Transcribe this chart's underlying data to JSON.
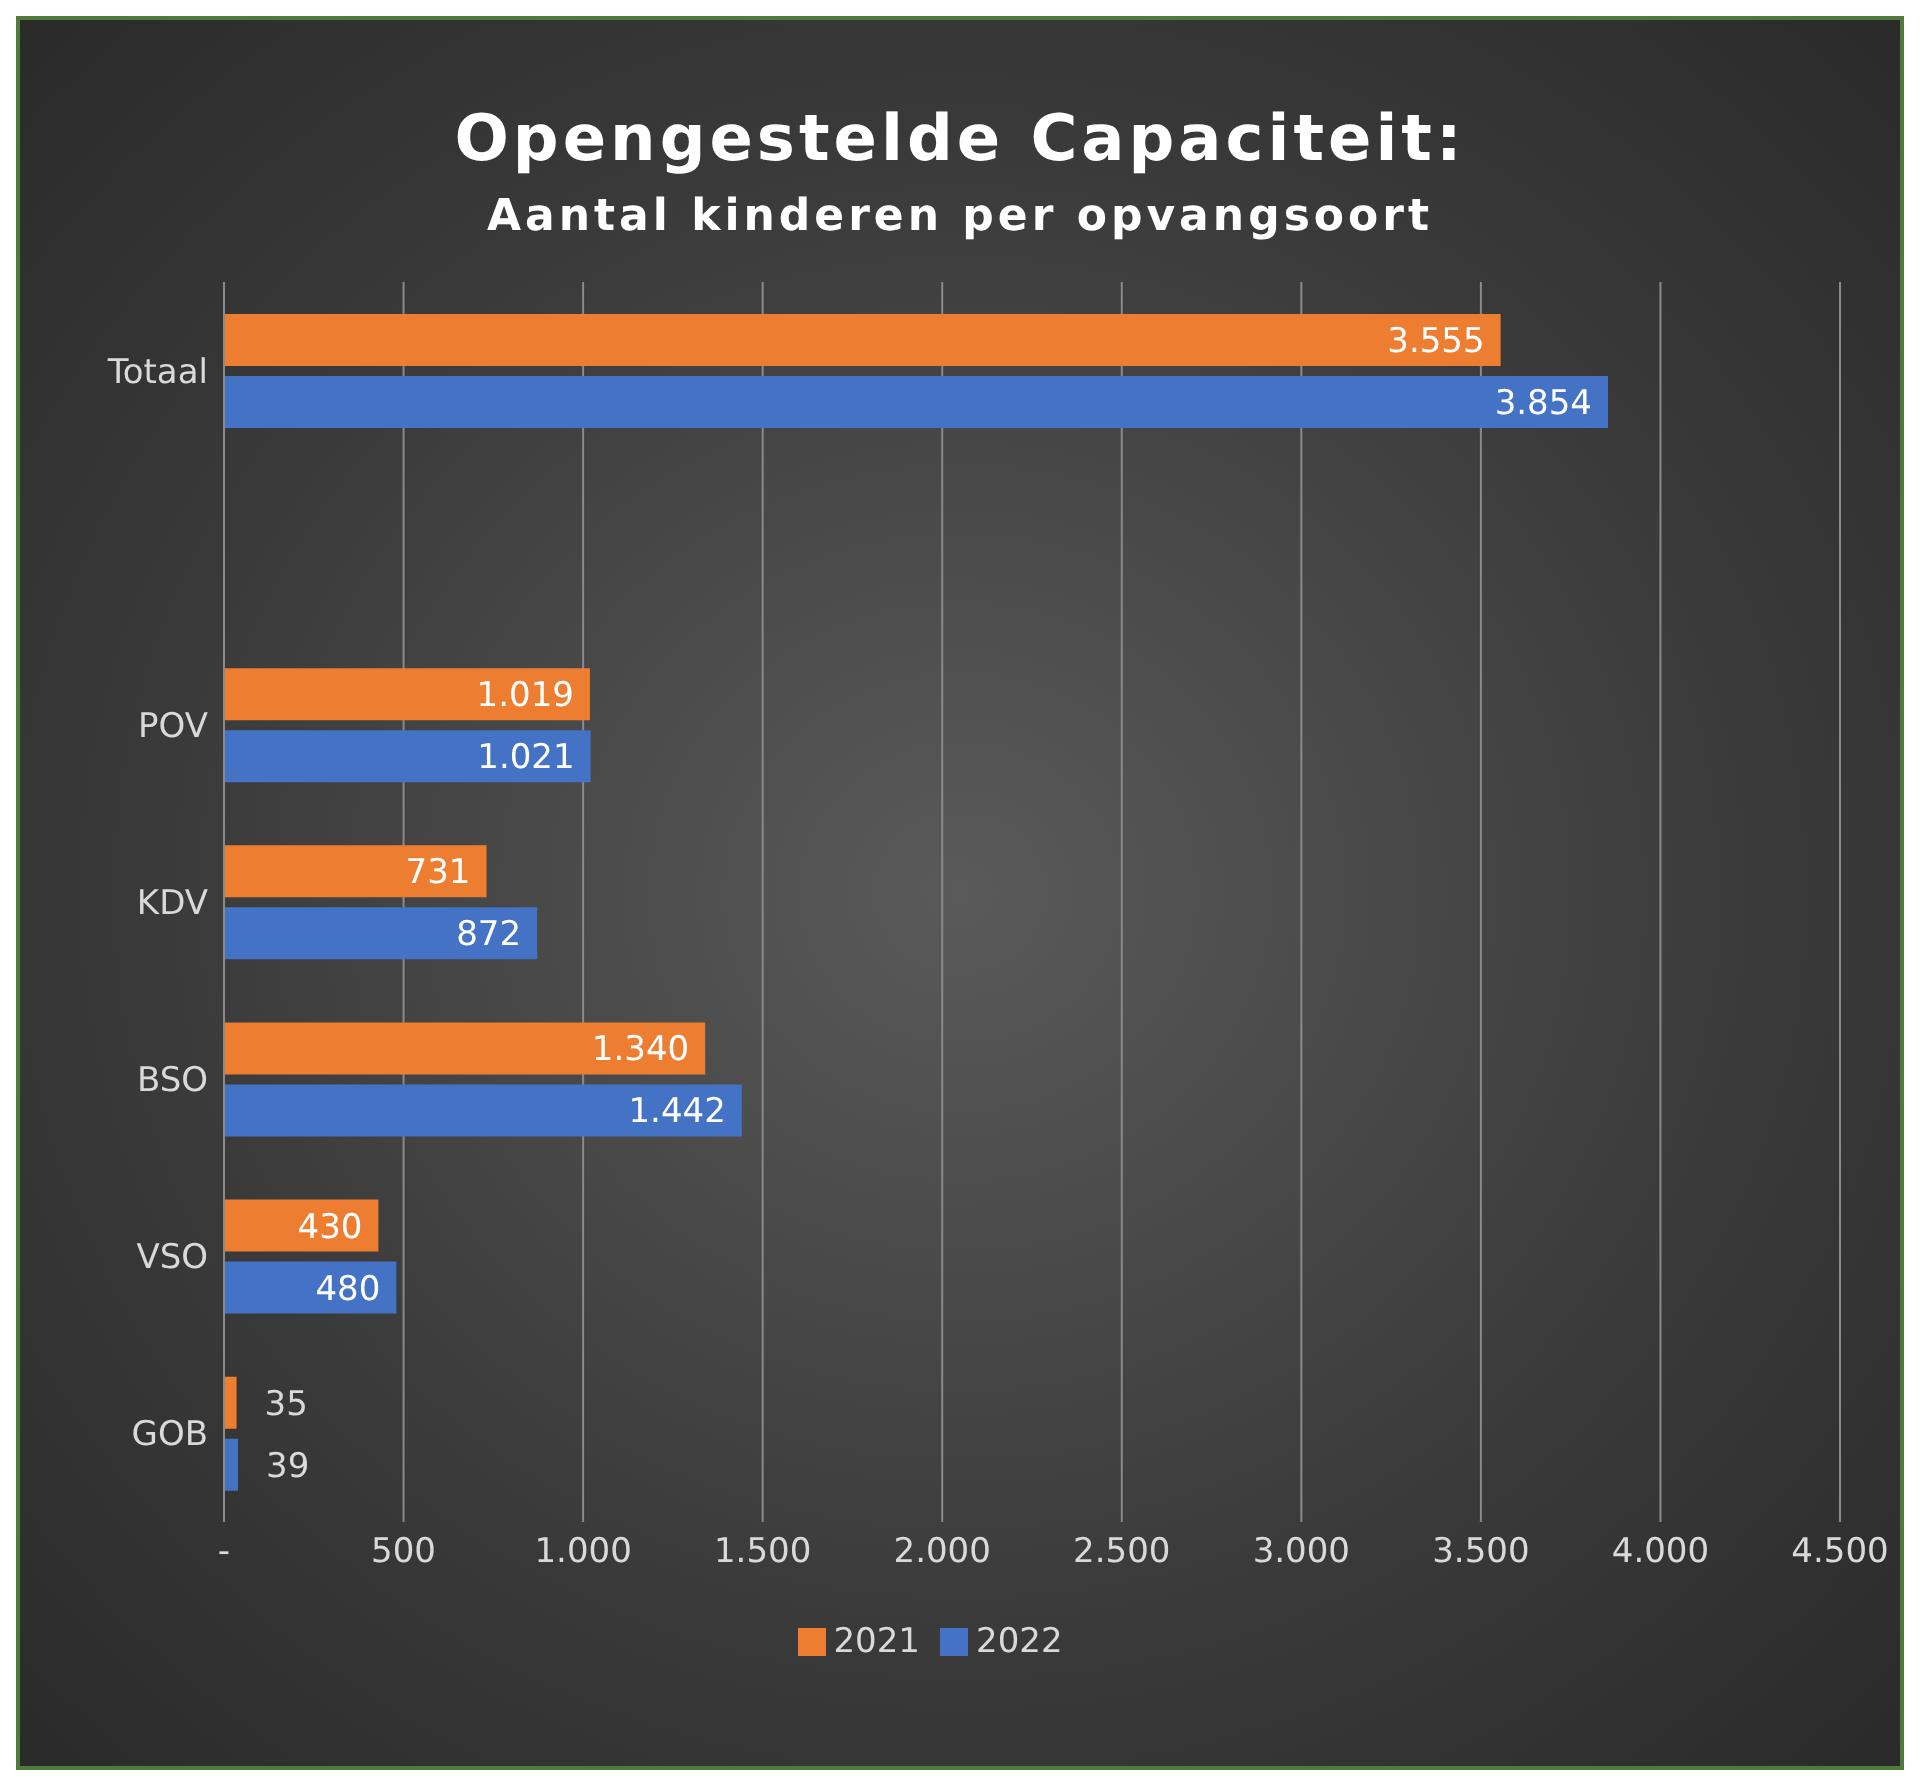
{
  "chart_data": {
    "type": "bar",
    "orientation": "horizontal",
    "title": "Opengestelde Capaciteit:",
    "subtitle": "Aantal kinderen per opvangsoort",
    "categories": [
      "Totaal",
      null,
      "POV",
      "KDV",
      "BSO",
      "VSO",
      "GOB"
    ],
    "series": [
      {
        "name": "2021",
        "color": "#ed7d31",
        "values": [
          3555,
          null,
          1019,
          731,
          1340,
          430,
          35
        ],
        "value_labels": [
          "3.555",
          null,
          "1.019",
          "731",
          "1.340",
          "430",
          "35"
        ]
      },
      {
        "name": "2022",
        "color": "#4472c4",
        "values": [
          3854,
          null,
          1021,
          872,
          1442,
          480,
          39
        ],
        "value_labels": [
          "3.854",
          null,
          "1.021",
          "872",
          "1.442",
          "480",
          "39"
        ]
      }
    ],
    "xlim": [
      0,
      4500
    ],
    "xticks": [
      {
        "value": 0,
        "label": "-"
      },
      500,
      {
        "value": 1000,
        "label": "1.000"
      },
      {
        "value": 1500,
        "label": "1.500"
      },
      {
        "value": 2000,
        "label": "2.000"
      },
      {
        "value": 2500,
        "label": "2.500"
      },
      {
        "value": 3000,
        "label": "3.000"
      },
      {
        "value": 3500,
        "label": "3.500"
      },
      {
        "value": 4000,
        "label": "4.000"
      },
      {
        "value": 4500,
        "label": "4.500"
      }
    ],
    "grid": "x",
    "legend": "bottom"
  }
}
